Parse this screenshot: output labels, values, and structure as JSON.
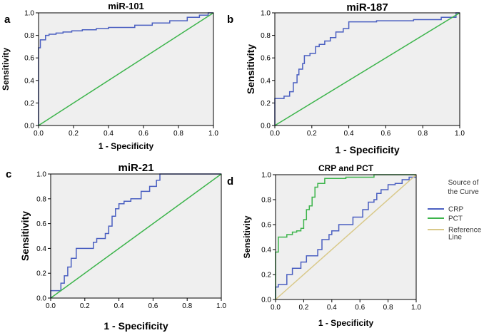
{
  "chart_data": [
    {
      "type": "line",
      "panel_letter": "a",
      "title": "miR-101",
      "xlabel": "1 - Specificity",
      "ylabel": "Sensitivity",
      "xlim": [
        0,
        1
      ],
      "ylim": [
        0,
        1
      ],
      "x_ticks": [
        "0.0",
        "0.2",
        "0.4",
        "0.6",
        "0.8",
        "1.0"
      ],
      "y_ticks": [
        "0.0",
        "0.2",
        "0.4",
        "0.6",
        "0.8",
        "1.0"
      ],
      "series": [
        {
          "name": "miR-101",
          "color": "#4a5fc1",
          "x": [
            0,
            0,
            0.01,
            0.01,
            0.04,
            0.04,
            0.06,
            0.06,
            0.1,
            0.1,
            0.14,
            0.14,
            0.19,
            0.19,
            0.25,
            0.25,
            0.33,
            0.33,
            0.4,
            0.4,
            0.55,
            0.55,
            0.65,
            0.65,
            0.75,
            0.75,
            0.85,
            0.85,
            0.92,
            0.92,
            0.97,
            0.97,
            1.0
          ],
          "y": [
            0,
            0.69,
            0.69,
            0.76,
            0.76,
            0.8,
            0.8,
            0.81,
            0.81,
            0.82,
            0.82,
            0.83,
            0.83,
            0.84,
            0.84,
            0.85,
            0.85,
            0.86,
            0.86,
            0.87,
            0.87,
            0.89,
            0.89,
            0.91,
            0.91,
            0.93,
            0.93,
            0.96,
            0.96,
            0.98,
            0.98,
            1.0,
            1.0
          ]
        },
        {
          "name": "Reference",
          "color": "#3cb44b",
          "x": [
            0,
            1
          ],
          "y": [
            0,
            1
          ]
        }
      ]
    },
    {
      "type": "line",
      "panel_letter": "b",
      "title": "miR-187",
      "xlabel": "1 - Specificity",
      "ylabel": "Sensitivity",
      "xlim": [
        0,
        1
      ],
      "ylim": [
        0,
        1
      ],
      "x_ticks": [
        "0.0",
        "0.2",
        "0.4",
        "0.6",
        "0.8",
        "1.0"
      ],
      "y_ticks": [
        "0.0",
        "0.2",
        "0.4",
        "0.6",
        "0.8",
        "1.0"
      ],
      "series": [
        {
          "name": "miR-187",
          "color": "#4a5fc1",
          "x": [
            0,
            0,
            0.05,
            0.05,
            0.08,
            0.08,
            0.1,
            0.1,
            0.12,
            0.12,
            0.13,
            0.13,
            0.15,
            0.15,
            0.16,
            0.16,
            0.19,
            0.19,
            0.22,
            0.22,
            0.24,
            0.24,
            0.27,
            0.27,
            0.3,
            0.3,
            0.33,
            0.33,
            0.37,
            0.37,
            0.4,
            0.4,
            0.55,
            0.55,
            0.75,
            0.75,
            0.9,
            0.9,
            0.98,
            0.98,
            1.0
          ],
          "y": [
            0,
            0.24,
            0.24,
            0.26,
            0.26,
            0.3,
            0.3,
            0.38,
            0.38,
            0.45,
            0.45,
            0.5,
            0.5,
            0.55,
            0.55,
            0.62,
            0.62,
            0.64,
            0.64,
            0.7,
            0.7,
            0.72,
            0.72,
            0.75,
            0.75,
            0.78,
            0.78,
            0.83,
            0.83,
            0.86,
            0.86,
            0.92,
            0.92,
            0.93,
            0.93,
            0.94,
            0.94,
            0.96,
            0.96,
            1.0,
            1.0
          ]
        },
        {
          "name": "Reference",
          "color": "#3cb44b",
          "x": [
            0,
            1
          ],
          "y": [
            0,
            1
          ]
        }
      ]
    },
    {
      "type": "line",
      "panel_letter": "c",
      "title": "miR-21",
      "xlabel": "1 - Specificity",
      "ylabel": "Sensitivity",
      "xlim": [
        0,
        1
      ],
      "ylim": [
        0,
        1
      ],
      "x_ticks": [
        "0.0",
        "0.2",
        "0.4",
        "0.6",
        "0.8",
        "1.0"
      ],
      "y_ticks": [
        "0.0",
        "0.2",
        "0.4",
        "0.6",
        "0.8",
        "1.0"
      ],
      "series": [
        {
          "name": "miR-21",
          "color": "#4a5fc1",
          "x": [
            0,
            0,
            0.06,
            0.06,
            0.08,
            0.08,
            0.1,
            0.1,
            0.12,
            0.12,
            0.15,
            0.15,
            0.25,
            0.25,
            0.27,
            0.27,
            0.32,
            0.32,
            0.34,
            0.34,
            0.36,
            0.36,
            0.38,
            0.38,
            0.4,
            0.4,
            0.43,
            0.43,
            0.47,
            0.47,
            0.53,
            0.53,
            0.58,
            0.58,
            0.62,
            0.62,
            0.64,
            0.64,
            1.0
          ],
          "y": [
            0,
            0.06,
            0.06,
            0.12,
            0.12,
            0.18,
            0.18,
            0.25,
            0.25,
            0.32,
            0.32,
            0.4,
            0.4,
            0.45,
            0.45,
            0.48,
            0.48,
            0.52,
            0.52,
            0.58,
            0.58,
            0.66,
            0.66,
            0.72,
            0.72,
            0.76,
            0.76,
            0.78,
            0.78,
            0.8,
            0.8,
            0.86,
            0.86,
            0.9,
            0.9,
            0.95,
            0.95,
            1.0,
            1.0
          ]
        },
        {
          "name": "Reference",
          "color": "#3cb44b",
          "x": [
            0,
            1
          ],
          "y": [
            0,
            1
          ]
        }
      ]
    },
    {
      "type": "line",
      "panel_letter": "d",
      "title": "CRP and PCT",
      "xlabel": "1 - Specificity",
      "ylabel": "Sensitivity",
      "xlim": [
        0,
        1
      ],
      "ylim": [
        0,
        1
      ],
      "x_ticks": [
        "0.0",
        "0.2",
        "0.4",
        "0.6",
        "0.8",
        "1.0"
      ],
      "y_ticks": [
        "0.0",
        "0.2",
        "0.4",
        "0.6",
        "0.8",
        "1.0"
      ],
      "legend": {
        "title_lines": [
          "Source of",
          "the Curve"
        ],
        "entries": [
          {
            "label_lines": [
              "CRP"
            ],
            "color": "#4a5fc1"
          },
          {
            "label_lines": [
              "PCT"
            ],
            "color": "#3cb44b"
          },
          {
            "label_lines": [
              "Reference",
              "Line"
            ],
            "color": "#d9c98a"
          }
        ]
      },
      "series": [
        {
          "name": "CRP",
          "color": "#4a5fc1",
          "x": [
            0,
            0,
            0.02,
            0.02,
            0.08,
            0.08,
            0.12,
            0.12,
            0.18,
            0.18,
            0.22,
            0.22,
            0.3,
            0.3,
            0.33,
            0.33,
            0.38,
            0.38,
            0.4,
            0.4,
            0.45,
            0.45,
            0.55,
            0.55,
            0.62,
            0.62,
            0.66,
            0.66,
            0.7,
            0.7,
            0.72,
            0.72,
            0.75,
            0.75,
            0.8,
            0.8,
            0.85,
            0.85,
            0.9,
            0.9,
            0.95,
            0.95,
            1.0
          ],
          "y": [
            0,
            0.1,
            0.1,
            0.12,
            0.12,
            0.2,
            0.2,
            0.25,
            0.25,
            0.3,
            0.3,
            0.35,
            0.35,
            0.4,
            0.4,
            0.48,
            0.48,
            0.52,
            0.52,
            0.55,
            0.55,
            0.6,
            0.6,
            0.66,
            0.66,
            0.72,
            0.72,
            0.78,
            0.78,
            0.8,
            0.8,
            0.85,
            0.85,
            0.88,
            0.88,
            0.92,
            0.92,
            0.93,
            0.93,
            0.96,
            0.96,
            0.98,
            0.98
          ]
        },
        {
          "name": "PCT",
          "color": "#3cb44b",
          "x": [
            0,
            0,
            0.02,
            0.02,
            0.08,
            0.08,
            0.12,
            0.12,
            0.15,
            0.15,
            0.18,
            0.18,
            0.2,
            0.2,
            0.22,
            0.22,
            0.24,
            0.24,
            0.26,
            0.26,
            0.28,
            0.28,
            0.3,
            0.3,
            0.35,
            0.35,
            0.5,
            0.5,
            0.7,
            0.7,
            1.0
          ],
          "y": [
            0,
            0.38,
            0.38,
            0.5,
            0.5,
            0.52,
            0.52,
            0.54,
            0.54,
            0.55,
            0.55,
            0.57,
            0.57,
            0.64,
            0.64,
            0.72,
            0.72,
            0.75,
            0.75,
            0.82,
            0.82,
            0.9,
            0.9,
            0.93,
            0.93,
            0.97,
            0.97,
            0.98,
            0.98,
            1.0,
            1.0
          ]
        },
        {
          "name": "Reference Line",
          "color": "#d9c98a",
          "x": [
            0,
            1
          ],
          "y": [
            0,
            1
          ]
        }
      ]
    }
  ]
}
